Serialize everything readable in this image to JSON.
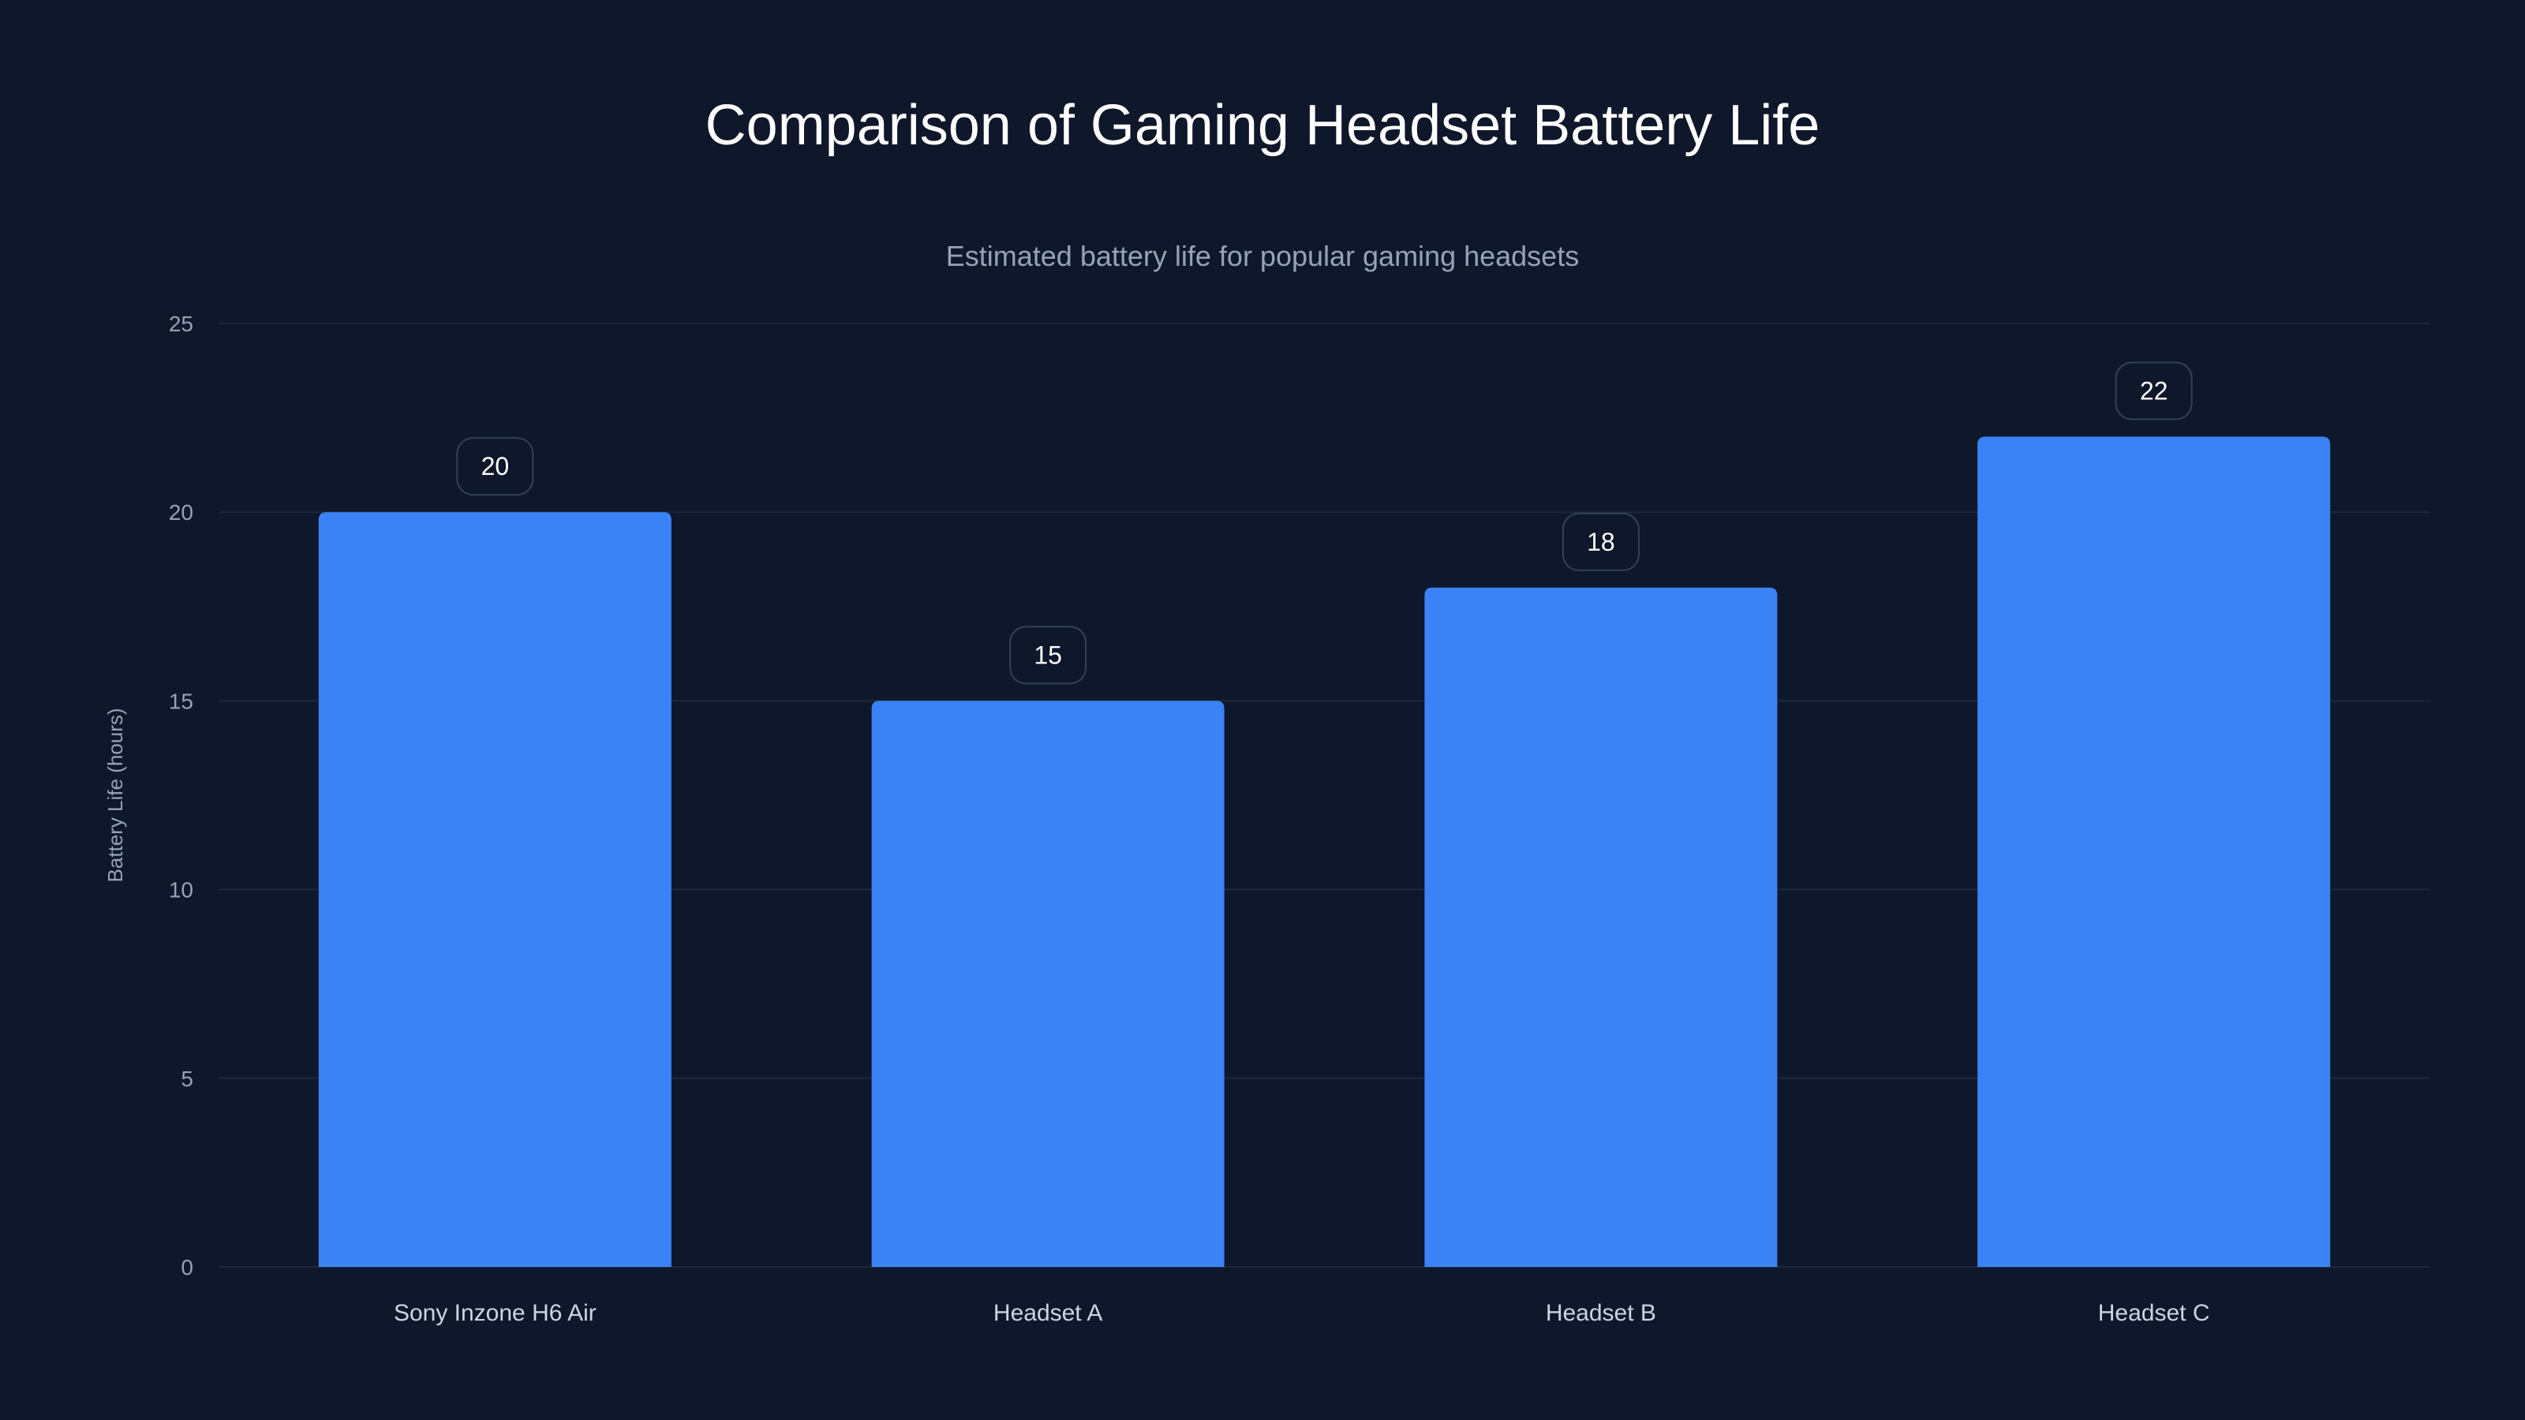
{
  "chart_data": {
    "type": "bar",
    "title": "Comparison of Gaming Headset Battery Life",
    "subtitle": "Estimated battery life for popular gaming headsets",
    "xlabel": "",
    "ylabel": "Battery Life (hours)",
    "categories": [
      "Sony Inzone H6 Air",
      "Headset A",
      "Headset B",
      "Headset C"
    ],
    "values": [
      20,
      15,
      18,
      22
    ],
    "ylim": [
      0,
      25
    ],
    "yticks": [
      0,
      5,
      10,
      15,
      20,
      25
    ],
    "grid": true,
    "data_labels": true,
    "colors": {
      "background": "#0f172a",
      "bar": "#3b82f6",
      "grid": "#1e293b",
      "tick": "#94a3b8",
      "category": "#cbd5e1",
      "label_border": "#334155"
    }
  }
}
